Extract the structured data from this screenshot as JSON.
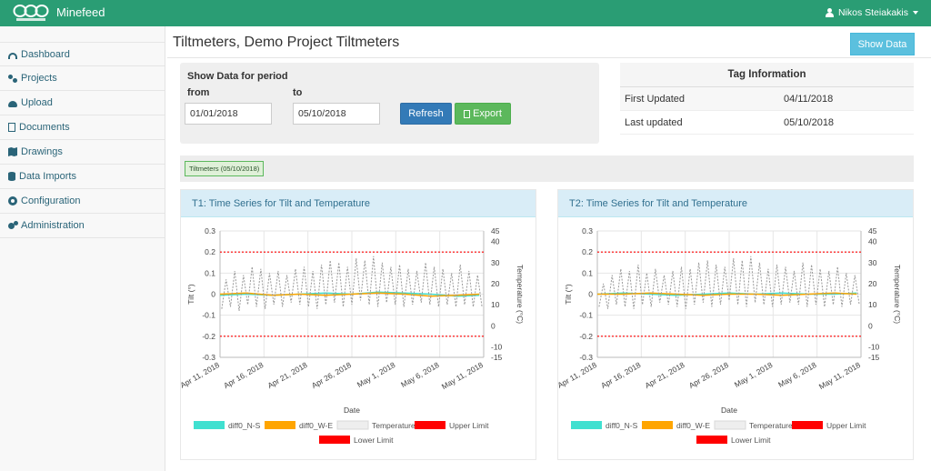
{
  "app": {
    "brand": "Minefeed",
    "logo_icon": "geosysta-logo-icon",
    "user": "Nikos Steiakakis"
  },
  "sidebar": {
    "items": [
      {
        "label": "Dashboard",
        "icon": "dashboard-icon"
      },
      {
        "label": "Projects",
        "icon": "projects-icon"
      },
      {
        "label": "Upload",
        "icon": "cloud-upload-icon"
      },
      {
        "label": "Documents",
        "icon": "document-icon"
      },
      {
        "label": "Drawings",
        "icon": "map-icon"
      },
      {
        "label": "Data Imports",
        "icon": "database-icon"
      },
      {
        "label": "Configuration",
        "icon": "gear-icon"
      },
      {
        "label": "Administration",
        "icon": "gears-icon"
      }
    ]
  },
  "page": {
    "title": "Tiltmeters, Demo Project Tiltmeters",
    "show_data_label": "Show Data"
  },
  "period": {
    "heading": "Show Data for period",
    "from_label": "from",
    "to_label": "to",
    "from_value": "01/01/2018",
    "to_value": "05/10/2018",
    "refresh_label": "Refresh",
    "export_label": "Export"
  },
  "tag_info": {
    "heading": "Tag Information",
    "rows": [
      {
        "key": "First Updated",
        "value": "04/11/2018"
      },
      {
        "key": "Last updated",
        "value": "05/10/2018"
      }
    ]
  },
  "tabs": [
    {
      "label": "Tiltmeters (05/10/2018)"
    }
  ],
  "colors": {
    "navbar": "#2a9d74",
    "ns": "#40e0d0",
    "we": "#ffa500",
    "temperature": "#999999",
    "limit": "#ff0000"
  },
  "chart_data": [
    {
      "type": "line",
      "title": "T1: Time Series for Tilt and Temperature",
      "xlabel": "Date",
      "ylabel": "Tilt (°)",
      "y2label": "Temperature (°C)",
      "x_ticks": [
        "Apr 11, 2018",
        "Apr 16, 2018",
        "Apr 21, 2018",
        "Apr 26, 2018",
        "May 1, 2018",
        "May 6, 2018",
        "May 11, 2018"
      ],
      "y_ticks": [
        "0.3",
        "0.2",
        "0.1",
        "0",
        "-0.1",
        "-0.2",
        "-0.3"
      ],
      "y2_ticks": [
        "45",
        "40",
        "30",
        "20",
        "10",
        "0",
        "-10",
        "-15"
      ],
      "ylim": [
        -0.3,
        0.3
      ],
      "y2lim": [
        -15,
        45
      ],
      "grid": true,
      "legend": "bottom",
      "x_days": [
        0,
        30
      ],
      "series": [
        {
          "name": "diff0_N-S",
          "kind": "tilt",
          "color": "#40e0d0",
          "x": [
            0,
            3,
            6,
            9,
            12,
            15,
            18,
            21,
            24,
            27,
            29.5
          ],
          "values": [
            -0.005,
            0.0,
            -0.005,
            0.0,
            0.005,
            0.0,
            0.01,
            0.005,
            0.0,
            -0.01,
            -0.005
          ]
        },
        {
          "name": "diff0_W-E",
          "kind": "tilt",
          "color": "#ffa500",
          "x": [
            0,
            3,
            6,
            9,
            12,
            15,
            18,
            21,
            24,
            27,
            29.5
          ],
          "values": [
            0.0,
            0.005,
            -0.005,
            0.0,
            -0.005,
            0.0,
            0.005,
            0.0,
            -0.01,
            -0.005,
            0.0
          ]
        },
        {
          "name": "Temperature",
          "kind": "temp",
          "color": "#999999",
          "daily": {
            "start": 0.2,
            "end": 29.8,
            "mins": [
              8,
              9,
              7,
              10,
              9,
              8,
              10,
              9,
              11,
              10,
              9,
              8,
              10,
              11,
              9,
              10,
              12,
              10,
              9,
              11,
              10,
              9,
              10,
              11,
              10,
              9,
              10,
              9,
              10,
              9
            ],
            "maxs": [
              22,
              26,
              24,
              28,
              27,
              25,
              26,
              24,
              27,
              28,
              26,
              29,
              31,
              30,
              28,
              32,
              31,
              33,
              30,
              28,
              29,
              27,
              26,
              30,
              28,
              27,
              25,
              29,
              26,
              24
            ]
          }
        },
        {
          "name": "Upper Limit",
          "kind": "limit",
          "color": "#ff0000",
          "x": [
            0,
            30
          ],
          "values": [
            0.2,
            0.2
          ]
        },
        {
          "name": "Lower Limit",
          "kind": "limit",
          "color": "#ff0000",
          "x": [
            0,
            30
          ],
          "values": [
            -0.2,
            -0.2
          ]
        }
      ]
    },
    {
      "type": "line",
      "title": "T2: Time Series for Tilt and Temperature",
      "xlabel": "Date",
      "ylabel": "Tilt (°)",
      "y2label": "Temperature (°C)",
      "x_ticks": [
        "Apr 11, 2018",
        "Apr 16, 2018",
        "Apr 21, 2018",
        "Apr 26, 2018",
        "May 1, 2018",
        "May 6, 2018",
        "May 11, 2018"
      ],
      "y_ticks": [
        "0.3",
        "0.2",
        "0.1",
        "0",
        "-0.1",
        "-0.2",
        "-0.3"
      ],
      "y2_ticks": [
        "45",
        "40",
        "30",
        "20",
        "10",
        "0",
        "-10",
        "-15"
      ],
      "ylim": [
        -0.3,
        0.3
      ],
      "y2lim": [
        -15,
        45
      ],
      "grid": true,
      "legend": "bottom",
      "x_days": [
        0,
        30
      ],
      "series": [
        {
          "name": "diff0_N-S",
          "kind": "tilt",
          "color": "#40e0d0",
          "x": [
            0,
            3,
            6,
            9,
            12,
            15,
            18,
            21,
            24,
            27,
            29.5
          ],
          "values": [
            0.0,
            0.005,
            0.0,
            -0.005,
            0.0,
            0.005,
            0.0,
            0.005,
            0.0,
            0.0,
            0.005
          ]
        },
        {
          "name": "diff0_W-E",
          "kind": "tilt",
          "color": "#ffa500",
          "x": [
            0,
            3,
            6,
            9,
            12,
            15,
            18,
            21,
            24,
            27,
            29.5
          ],
          "values": [
            0.0,
            0.0,
            0.005,
            0.0,
            -0.005,
            0.0,
            0.0,
            -0.005,
            0.0,
            0.005,
            0.0
          ]
        },
        {
          "name": "Temperature",
          "kind": "temp",
          "color": "#999999",
          "daily": {
            "start": 0.2,
            "end": 29.8,
            "mins": [
              9,
              8,
              10,
              9,
              8,
              10,
              9,
              11,
              10,
              9,
              8,
              10,
              11,
              9,
              10,
              12,
              10,
              9,
              11,
              10,
              9,
              10,
              11,
              10,
              9,
              10,
              9,
              10,
              9,
              10
            ],
            "maxs": [
              20,
              24,
              27,
              26,
              29,
              25,
              27,
              24,
              26,
              28,
              27,
              30,
              31,
              29,
              28,
              32,
              31,
              33,
              30,
              27,
              29,
              28,
              26,
              30,
              29,
              27,
              26,
              28,
              25,
              24
            ]
          }
        },
        {
          "name": "Upper Limit",
          "kind": "limit",
          "color": "#ff0000",
          "x": [
            0,
            30
          ],
          "values": [
            0.2,
            0.2
          ]
        },
        {
          "name": "Lower Limit",
          "kind": "limit",
          "color": "#ff0000",
          "x": [
            0,
            30
          ],
          "values": [
            -0.2,
            -0.2
          ]
        }
      ]
    }
  ]
}
